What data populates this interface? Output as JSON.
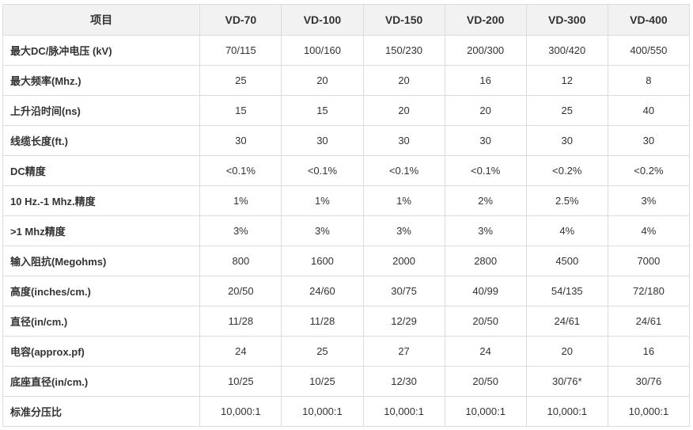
{
  "table": {
    "headers": [
      "项目",
      "VD-70",
      "VD-100",
      "VD-150",
      "VD-200",
      "VD-300",
      "VD-400"
    ],
    "rows": [
      [
        "最大DC/脉冲电压 (kV)",
        "70/115",
        "100/160",
        "150/230",
        "200/300",
        "300/420",
        "400/550"
      ],
      [
        "最大频率(Mhz.)",
        "25",
        "20",
        "20",
        "16",
        "12",
        "8"
      ],
      [
        "上升沿时间(ns)",
        "15",
        "15",
        "20",
        "20",
        "25",
        "40"
      ],
      [
        "线缆长度(ft.)",
        "30",
        "30",
        "30",
        "30",
        "30",
        "30"
      ],
      [
        "DC精度",
        "<0.1%",
        "<0.1%",
        "<0.1%",
        "<0.1%",
        "<0.2%",
        "<0.2%"
      ],
      [
        "10 Hz.-1 Mhz.精度",
        "1%",
        "1%",
        "1%",
        "2%",
        "2.5%",
        "3%"
      ],
      [
        ">1 Mhz精度",
        "3%",
        "3%",
        "3%",
        "3%",
        "4%",
        "4%"
      ],
      [
        "输入阻抗(Megohms)",
        "800",
        "1600",
        "2000",
        "2800",
        "4500",
        "7000"
      ],
      [
        "高度(inches/cm.)",
        "20/50",
        "24/60",
        "30/75",
        "40/99",
        "54/135",
        "72/180"
      ],
      [
        "直径(in/cm.)",
        "11/28",
        "11/28",
        "12/29",
        "20/50",
        "24/61",
        "24/61"
      ],
      [
        "电容(approx.pf)",
        "24",
        "25",
        "27",
        "24",
        "20",
        "16"
      ],
      [
        "底座直径(in/cm.)",
        "10/25",
        "10/25",
        "12/30",
        "20/50",
        "30/76*",
        "30/76"
      ],
      [
        "标准分压比",
        "10,000:1",
        "10,000:1",
        "10,000:1",
        "10,000:1",
        "10,000:1",
        "10,000:1"
      ]
    ]
  }
}
